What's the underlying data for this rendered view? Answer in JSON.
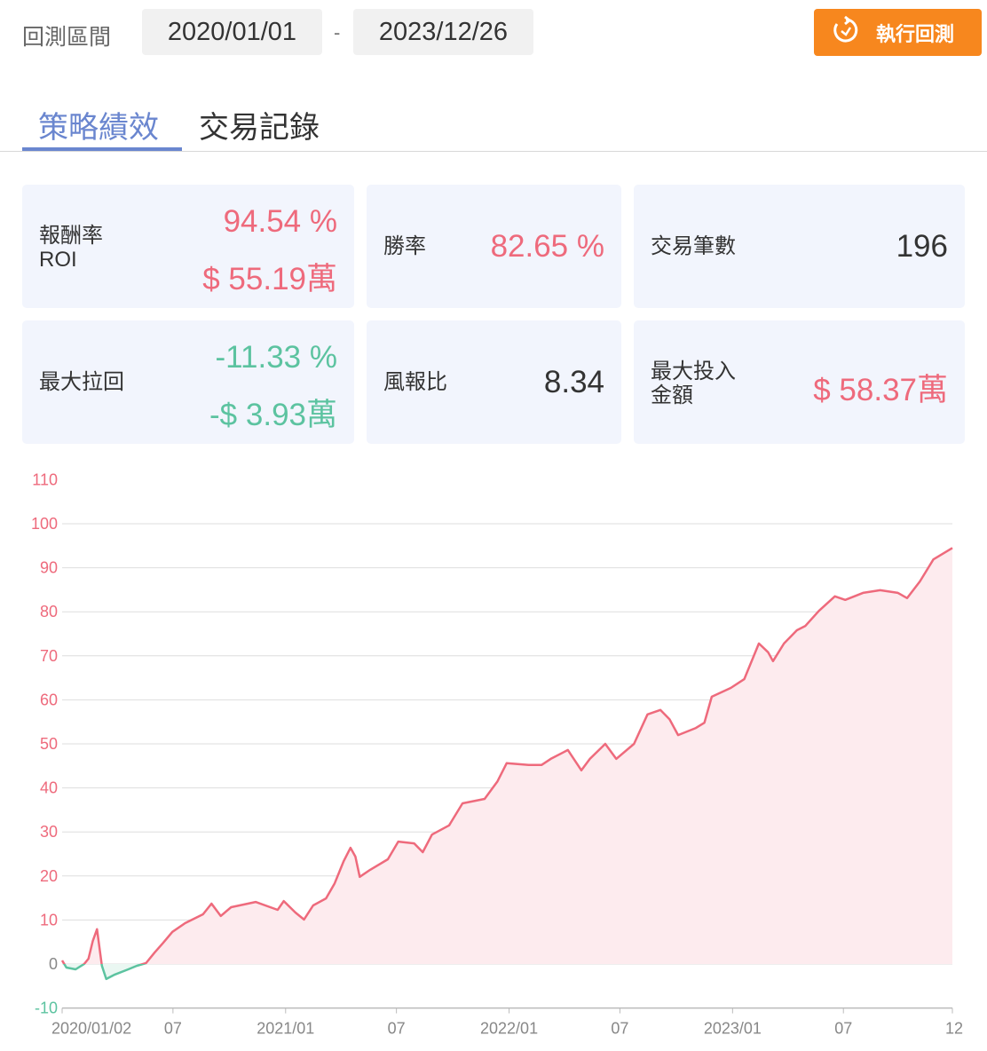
{
  "header": {
    "range_label": "回測區間",
    "start_date": "2020/01/01",
    "separator": "-",
    "end_date": "2023/12/26",
    "run_button": "執行回測",
    "run_icon": "refresh-icon",
    "accent_color": "#f7871e"
  },
  "tabs": [
    {
      "label": "策略績效",
      "active": true
    },
    {
      "label": "交易記錄",
      "active": false
    }
  ],
  "stats": {
    "roi": {
      "label1": "報酬率",
      "label2": "ROI",
      "percent": "94.54 %",
      "amount": "$ 55.19萬"
    },
    "win_rate": {
      "label": "勝率",
      "value": "82.65 %"
    },
    "trade_count": {
      "label": "交易筆數",
      "value": "196"
    },
    "max_drawdown": {
      "label": "最大拉回",
      "percent": "-11.33 %",
      "amount": "-$ 3.93萬"
    },
    "risk_reward": {
      "label": "風報比",
      "value": "8.34"
    },
    "max_investment": {
      "label1": "最大投入",
      "label2": "金額",
      "value": "$ 58.37萬"
    }
  },
  "colors": {
    "positive": "#ee6a7c",
    "negative": "#5cc3a0",
    "positive_fill": "#fdebee",
    "negative_fill": "#eaf7f2"
  },
  "chart_data": {
    "type": "area",
    "ylim": [
      -10,
      110
    ],
    "yticks": [
      -10,
      0,
      10,
      20,
      30,
      40,
      50,
      60,
      70,
      80,
      90,
      100,
      110
    ],
    "xlim": [
      "2020-01-02",
      "2023-12-26"
    ],
    "xticks": [
      {
        "label": "2020/01/02",
        "date": "2020-01-02"
      },
      {
        "label": "07",
        "date": "2020-07-01"
      },
      {
        "label": "2021/01",
        "date": "2021-01-01"
      },
      {
        "label": "07",
        "date": "2021-07-01"
      },
      {
        "label": "2022/01",
        "date": "2022-01-01"
      },
      {
        "label": "07",
        "date": "2022-07-01"
      },
      {
        "label": "2023/01",
        "date": "2023-01-01"
      },
      {
        "label": "07",
        "date": "2023-07-01"
      },
      {
        "label": "12",
        "date": "2023-12-26"
      }
    ],
    "grid": true,
    "series": [
      {
        "points": [
          [
            "2020-01-02",
            0.8
          ],
          [
            "2020-01-09",
            -0.8
          ],
          [
            "2020-01-24",
            -1.2
          ],
          [
            "2020-02-07",
            0
          ],
          [
            "2020-02-14",
            1.2
          ],
          [
            "2020-02-21",
            5.2
          ],
          [
            "2020-02-28",
            7.9
          ],
          [
            "2020-03-07",
            -0.4
          ],
          [
            "2020-03-14",
            -3.4
          ],
          [
            "2020-03-28",
            -2.4
          ],
          [
            "2020-04-19",
            -1.2
          ],
          [
            "2020-05-03",
            -0.4
          ],
          [
            "2020-05-18",
            0.2
          ],
          [
            "2020-06-01",
            2.6
          ],
          [
            "2020-06-15",
            4.8
          ],
          [
            "2020-06-30",
            7.3
          ],
          [
            "2020-07-21",
            9.3
          ],
          [
            "2020-08-19",
            11.3
          ],
          [
            "2020-09-02",
            13.7
          ],
          [
            "2020-09-17",
            10.9
          ],
          [
            "2020-10-04",
            12.9
          ],
          [
            "2020-11-13",
            14.1
          ],
          [
            "2020-12-19",
            12.3
          ],
          [
            "2020-12-29",
            14.3
          ],
          [
            "2021-01-17",
            11.7
          ],
          [
            "2021-01-31",
            10.1
          ],
          [
            "2021-02-15",
            13.3
          ],
          [
            "2021-03-08",
            14.9
          ],
          [
            "2021-03-22",
            18.3
          ],
          [
            "2021-04-06",
            23.4
          ],
          [
            "2021-04-17",
            26.4
          ],
          [
            "2021-04-25",
            24.4
          ],
          [
            "2021-05-02",
            19.8
          ],
          [
            "2021-05-19",
            21.4
          ],
          [
            "2021-06-17",
            23.8
          ],
          [
            "2021-07-04",
            27.8
          ],
          [
            "2021-07-30",
            27.4
          ],
          [
            "2021-08-13",
            25.4
          ],
          [
            "2021-08-28",
            29.4
          ],
          [
            "2021-09-25",
            31.5
          ],
          [
            "2021-10-17",
            36.5
          ],
          [
            "2021-11-22",
            37.5
          ],
          [
            "2021-12-13",
            41.5
          ],
          [
            "2021-12-28",
            45.6
          ],
          [
            "2022-02-02",
            45.2
          ],
          [
            "2022-02-23",
            45.2
          ],
          [
            "2022-03-10",
            46.6
          ],
          [
            "2022-04-07",
            48.6
          ],
          [
            "2022-04-29",
            44.0
          ],
          [
            "2022-05-13",
            46.6
          ],
          [
            "2022-06-07",
            50.0
          ],
          [
            "2022-06-25",
            46.6
          ],
          [
            "2022-07-24",
            50.0
          ],
          [
            "2022-08-15",
            56.7
          ],
          [
            "2022-09-05",
            57.7
          ],
          [
            "2022-09-20",
            55.6
          ],
          [
            "2022-10-04",
            52.0
          ],
          [
            "2022-11-02",
            53.6
          ],
          [
            "2022-11-16",
            54.8
          ],
          [
            "2022-11-28",
            60.7
          ],
          [
            "2022-12-29",
            62.7
          ],
          [
            "2023-01-20",
            64.7
          ],
          [
            "2023-02-13",
            72.8
          ],
          [
            "2023-02-28",
            70.8
          ],
          [
            "2023-03-08",
            68.8
          ],
          [
            "2023-03-26",
            72.8
          ],
          [
            "2023-04-16",
            75.8
          ],
          [
            "2023-04-30",
            76.8
          ],
          [
            "2023-05-22",
            80.2
          ],
          [
            "2023-06-17",
            83.5
          ],
          [
            "2023-07-04",
            82.7
          ],
          [
            "2023-08-02",
            84.3
          ],
          [
            "2023-08-30",
            84.9
          ],
          [
            "2023-09-28",
            84.3
          ],
          [
            "2023-10-13",
            83.1
          ],
          [
            "2023-11-03",
            86.9
          ],
          [
            "2023-11-25",
            91.9
          ],
          [
            "2023-12-26",
            94.5
          ]
        ]
      }
    ]
  }
}
